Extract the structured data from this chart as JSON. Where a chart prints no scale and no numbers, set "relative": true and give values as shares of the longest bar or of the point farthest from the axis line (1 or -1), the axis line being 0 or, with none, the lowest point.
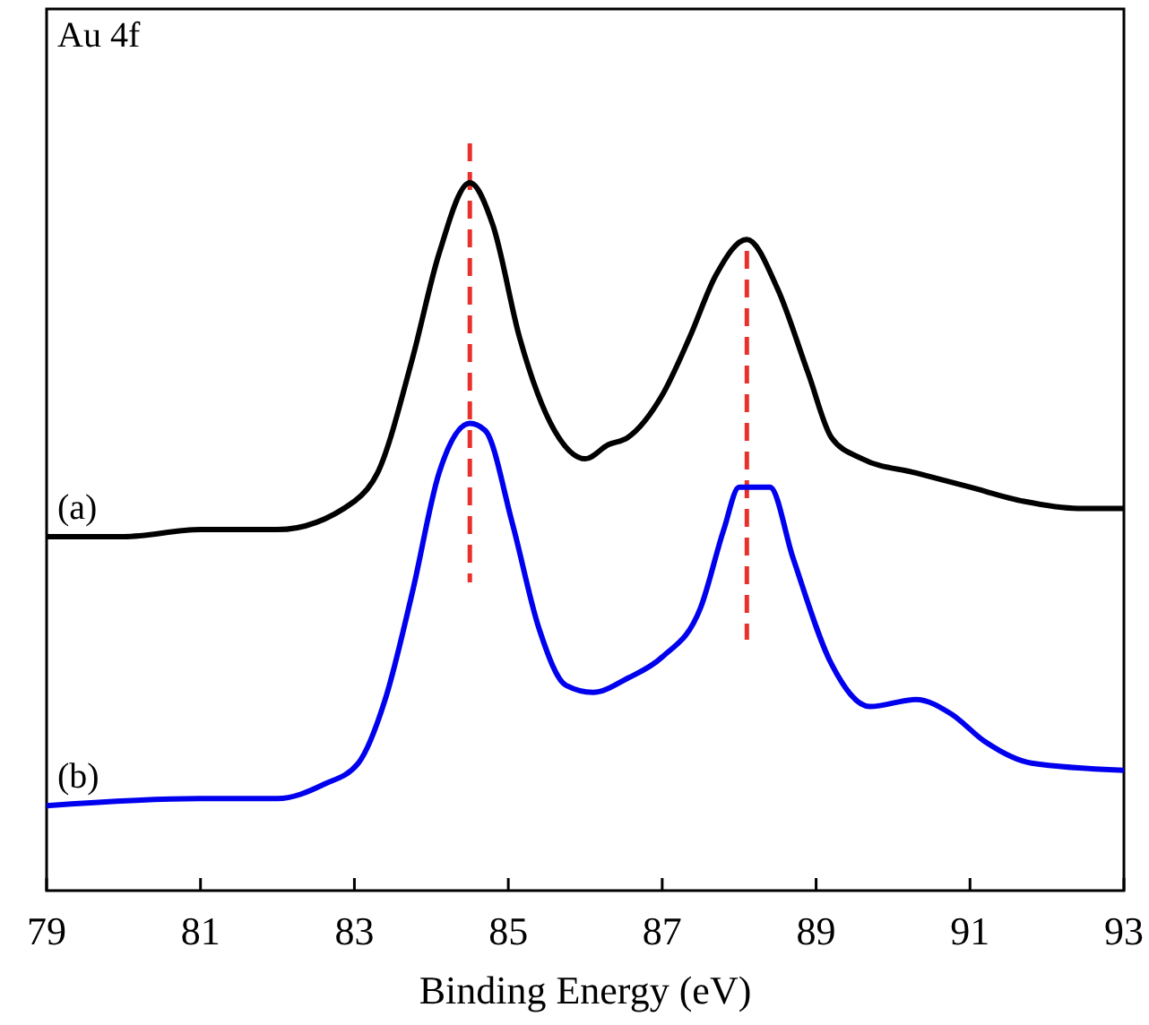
{
  "chart_data": {
    "type": "line",
    "relative": true,
    "xlabel": "Binding Energy (eV)",
    "xlim": [
      79,
      93
    ],
    "xticks": [
      79,
      81,
      83,
      85,
      87,
      89,
      91,
      93
    ],
    "legend": false,
    "grid": false,
    "line_style": "solid",
    "tick_labels": "x",
    "annotations": [
      "Au 4f"
    ],
    "ref_lines": [
      {
        "axis": "x",
        "value": 84.5,
        "color": "#e8312b",
        "line_style": "dashed"
      },
      {
        "axis": "x",
        "value": 88.1,
        "color": "#e8312b",
        "line_style": "dashed"
      }
    ],
    "series": [
      {
        "name": "(a)",
        "color": "#000000",
        "x": [
          79,
          80,
          81,
          82,
          83,
          83.3,
          83.75,
          84.1,
          84.5,
          84.8,
          85.15,
          85.6,
          86,
          86.3,
          86.55,
          87,
          87.35,
          87.7,
          88.1,
          88.5,
          88.9,
          89.2,
          89.6,
          90.3,
          91,
          91.7,
          92.4,
          93
        ],
        "values": [
          0.5,
          0.5,
          0.51,
          0.51,
          0.55,
          0.59,
          0.75,
          0.9,
          1,
          0.94,
          0.78,
          0.65,
          0.61,
          0.63,
          0.64,
          0.7,
          0.78,
          0.87,
          0.92,
          0.85,
          0.73,
          0.64,
          0.61,
          0.59,
          0.57,
          0.55,
          0.54,
          0.54
        ]
      },
      {
        "name": "(b)",
        "color": "#0000ee",
        "x": [
          79,
          81,
          82,
          82.6,
          83.05,
          83.4,
          83.75,
          84.1,
          84.5,
          84.7,
          85.05,
          85.4,
          85.75,
          86.1,
          86.55,
          87,
          87.5,
          87.8,
          88,
          88.4,
          88.7,
          89.2,
          89.7,
          90.3,
          90.75,
          91.2,
          91.8,
          93
        ],
        "values": [
          0.12,
          0.13,
          0.13,
          0.15,
          0.18,
          0.27,
          0.42,
          0.59,
          0.66,
          0.65,
          0.52,
          0.37,
          0.29,
          0.28,
          0.3,
          0.33,
          0.4,
          0.51,
          0.57,
          0.57,
          0.47,
          0.32,
          0.26,
          0.27,
          0.25,
          0.21,
          0.18,
          0.17
        ]
      }
    ]
  }
}
